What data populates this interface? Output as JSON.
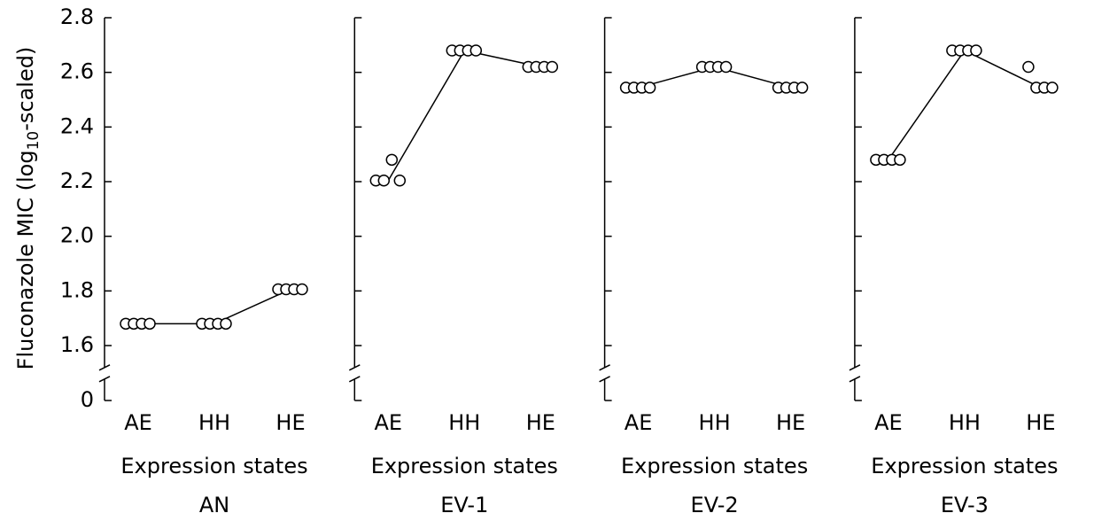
{
  "chart_data": [
    {
      "type": "dot-line",
      "title": "AN",
      "xlabel": "Expression states",
      "ylabel": [
        "Fluconazole MIC  (log",
        "10",
        "-scaled)"
      ],
      "categories": [
        "AE",
        "HH",
        "HE"
      ],
      "points": [
        [
          1.68,
          1.68,
          1.68,
          1.68
        ],
        [
          1.68,
          1.68,
          1.68,
          1.68
        ],
        [
          1.806,
          1.806,
          1.806,
          1.806
        ]
      ],
      "line": [
        1.68,
        1.68,
        1.806
      ],
      "ylim": [
        1.5,
        2.8
      ],
      "axis_break": true,
      "show_tick_labels": true,
      "yticks": [
        0,
        1.6,
        1.8,
        {
          "value": 2,
          "label": "2.0"
        },
        2.2,
        2.4,
        2.6,
        2.8
      ]
    },
    {
      "type": "dot-line",
      "title": "EV-1",
      "xlabel": "Expression states",
      "categories": [
        "AE",
        "HH",
        "HE"
      ],
      "points": [
        [
          2.204,
          2.204,
          2.28,
          2.204
        ],
        [
          2.68,
          2.68,
          2.68,
          2.68
        ],
        [
          2.62,
          2.62,
          2.62,
          2.62
        ]
      ],
      "line": [
        2.204,
        2.68,
        2.62
      ],
      "ylim": [
        1.5,
        2.8
      ],
      "axis_break": true,
      "show_tick_labels": false,
      "yticks": [
        0,
        1.6,
        1.8,
        {
          "value": 2,
          "label": "2.0"
        },
        2.2,
        2.4,
        2.6,
        2.8
      ]
    },
    {
      "type": "dot-line",
      "title": "EV-2",
      "xlabel": "Expression states",
      "categories": [
        "AE",
        "HH",
        "HE"
      ],
      "points": [
        [
          2.544,
          2.544,
          2.544,
          2.544
        ],
        [
          2.62,
          2.62,
          2.62,
          2.62
        ],
        [
          2.544,
          2.544,
          2.544,
          2.544
        ]
      ],
      "line": [
        2.544,
        2.62,
        2.544
      ],
      "ylim": [
        1.5,
        2.8
      ],
      "axis_break": true,
      "show_tick_labels": false,
      "yticks": [
        0,
        1.6,
        1.8,
        {
          "value": 2,
          "label": "2.0"
        },
        2.2,
        2.4,
        2.6,
        2.8
      ]
    },
    {
      "type": "dot-line",
      "title": "EV-3",
      "xlabel": "Expression states",
      "categories": [
        "AE",
        "HH",
        "HE"
      ],
      "points": [
        [
          2.28,
          2.28,
          2.28,
          2.28
        ],
        [
          2.68,
          2.68,
          2.68,
          2.68
        ],
        [
          2.62,
          2.544,
          2.544,
          2.544
        ]
      ],
      "line": [
        2.28,
        2.68,
        2.544
      ],
      "ylim": [
        1.5,
        2.8
      ],
      "axis_break": true,
      "show_tick_labels": false,
      "yticks": [
        0,
        1.6,
        1.8,
        {
          "value": 2,
          "label": "2.0"
        },
        2.2,
        2.4,
        2.6,
        2.8
      ]
    }
  ]
}
